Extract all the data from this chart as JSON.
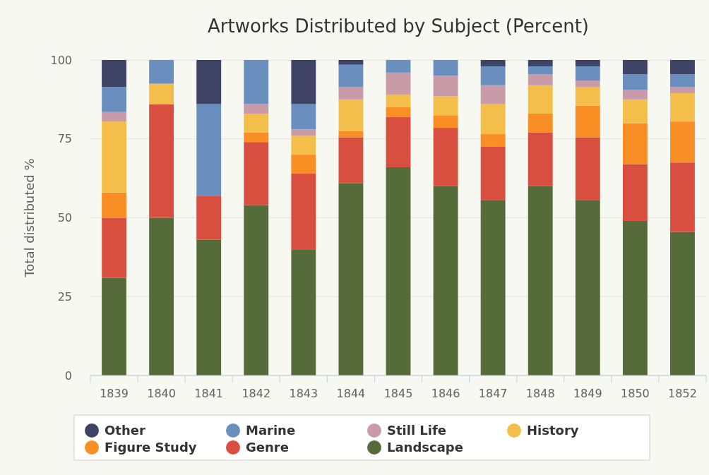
{
  "chart_data": {
    "type": "bar",
    "title": "Artworks Distributed by Subject (Percent)",
    "ylabel": "Total distributed %",
    "categories": [
      "1839",
      "1840",
      "1841",
      "1842",
      "1843",
      "1844",
      "1845",
      "1846",
      "1847",
      "1848",
      "1849",
      "1850",
      "1852"
    ],
    "stacked": true,
    "ylim": [
      0,
      100
    ],
    "yticks": [
      0,
      25,
      50,
      75,
      100
    ],
    "grid": "y",
    "legend": "bottom",
    "series": [
      {
        "name": "Landscape",
        "color": "#566b3a",
        "values": [
          31,
          50,
          43,
          54,
          40,
          61,
          66,
          60,
          55.5,
          60,
          55.5,
          49,
          45.5
        ]
      },
      {
        "name": "Genre",
        "color": "#d94f3f",
        "values": [
          19,
          36,
          14,
          20,
          24,
          14.5,
          16,
          18.5,
          17,
          17,
          20,
          18,
          22
        ]
      },
      {
        "name": "Figure Study",
        "color": "#f98e24",
        "values": [
          8,
          0,
          0,
          3,
          6,
          2,
          3,
          4,
          4,
          6,
          10,
          13,
          13
        ]
      },
      {
        "name": "History",
        "color": "#f3bf4a",
        "values": [
          22.5,
          6.5,
          0,
          6,
          6,
          10,
          4,
          6,
          9.5,
          9,
          6,
          7.5,
          9
        ]
      },
      {
        "name": "Still Life",
        "color": "#c99aa8",
        "values": [
          3,
          0,
          0,
          3,
          2,
          4,
          7,
          6.5,
          6,
          3.5,
          2,
          3,
          2
        ]
      },
      {
        "name": "Marine",
        "color": "#6a8fbf",
        "values": [
          8,
          7.5,
          29,
          14,
          8,
          7,
          4,
          5,
          6,
          2.5,
          4.5,
          5,
          4
        ]
      },
      {
        "name": "Other",
        "color": "#3f4366",
        "values": [
          8.5,
          0,
          14,
          0,
          14,
          1.5,
          0,
          0,
          2,
          2,
          2,
          4.5,
          4.5
        ]
      }
    ]
  }
}
